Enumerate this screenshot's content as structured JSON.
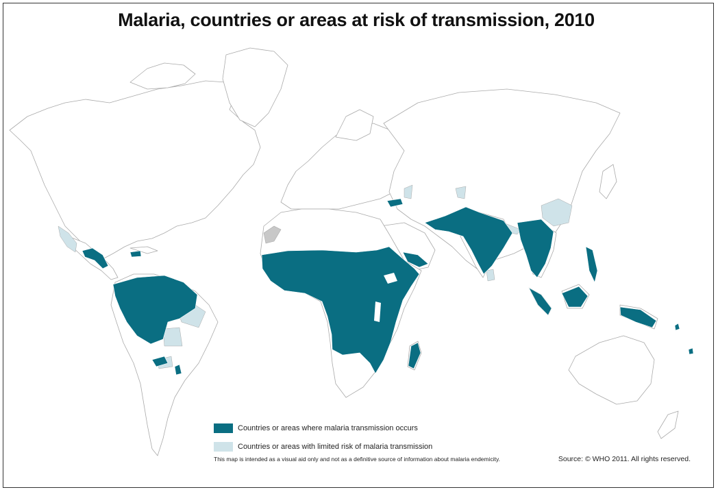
{
  "title": "Malaria, countries or areas at risk of transmission, 2010",
  "colors": {
    "transmission": "#0a6e82",
    "limited": "#cfe3e9",
    "land": "#ffffff",
    "border": "#a9a9a9",
    "other_grey": "#c8c8c8"
  },
  "legend": {
    "items": [
      {
        "label": "Countries or areas where malaria transmission occurs",
        "color": "#0a6e82"
      },
      {
        "label": "Countries or areas with limited risk of malaria transmission",
        "color": "#cfe3e9"
      }
    ]
  },
  "disclaimer": "This map is intended as a visual aid only and not as a definitive source of information about malaria endemicity.",
  "source": "Source: © WHO 2011. All rights reserved."
}
